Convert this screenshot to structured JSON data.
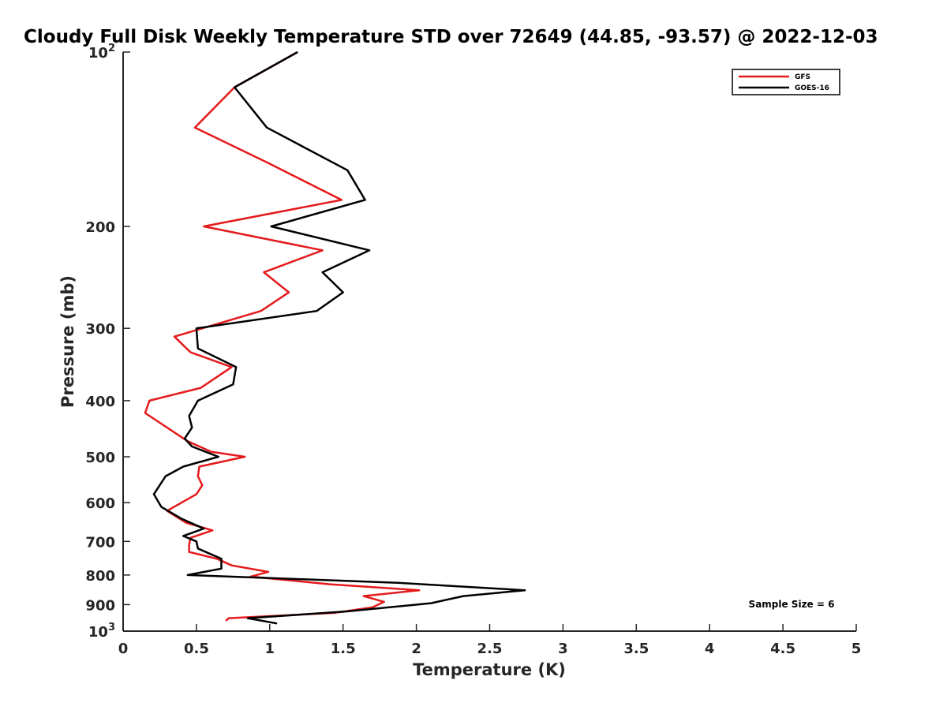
{
  "chart_data": {
    "type": "line",
    "title": "Cloudy Full Disk Weekly Temperature STD over 72649 (44.85, -93.57) @ 2022-12-03",
    "xlabel": "Temperature (K)",
    "ylabel": "Pressure (mb)",
    "xlim": [
      0,
      5
    ],
    "ylim": [
      100,
      1000
    ],
    "y_scale": "log",
    "y_reversed": true,
    "grid": false,
    "legend_position": "top-right",
    "x_ticks": [
      "0",
      "0.5",
      "1",
      "1.5",
      "2",
      "2.5",
      "3",
      "3.5",
      "4",
      "4.5",
      "5"
    ],
    "x_tick_values": [
      0,
      0.5,
      1,
      1.5,
      2,
      2.5,
      3,
      3.5,
      4,
      4.5,
      5
    ],
    "y_ticks": [
      {
        "value": 100,
        "base": "10",
        "exp": "2"
      },
      {
        "value": 200,
        "label": "200"
      },
      {
        "value": 300,
        "label": "300"
      },
      {
        "value": 400,
        "label": "400"
      },
      {
        "value": 500,
        "label": "500"
      },
      {
        "value": 600,
        "label": "600"
      },
      {
        "value": 700,
        "label": "700"
      },
      {
        "value": 800,
        "label": "800"
      },
      {
        "value": 900,
        "label": "900"
      },
      {
        "value": 1000,
        "base": "10",
        "exp": "3"
      }
    ],
    "annotation": "Sample Size = 6",
    "series": [
      {
        "name": "GFS",
        "color": "#e41a1c",
        "points": [
          [
            1.19,
            100
          ],
          [
            0.76,
            115
          ],
          [
            0.49,
            135
          ],
          [
            0.98,
            155
          ],
          [
            1.49,
            180
          ],
          [
            0.55,
            200
          ],
          [
            1.36,
            220
          ],
          [
            0.96,
            240
          ],
          [
            1.13,
            260
          ],
          [
            0.94,
            280
          ],
          [
            0.35,
            310
          ],
          [
            0.46,
            330
          ],
          [
            0.74,
            350
          ],
          [
            0.53,
            380
          ],
          [
            0.18,
            400
          ],
          [
            0.15,
            420
          ],
          [
            0.44,
            470
          ],
          [
            0.6,
            490
          ],
          [
            0.83,
            500
          ],
          [
            0.52,
            520
          ],
          [
            0.51,
            540
          ],
          [
            0.54,
            560
          ],
          [
            0.5,
            580
          ],
          [
            0.3,
            620
          ],
          [
            0.43,
            650
          ],
          [
            0.61,
            670
          ],
          [
            0.46,
            690
          ],
          [
            0.45,
            710
          ],
          [
            0.45,
            730
          ],
          [
            0.64,
            750
          ],
          [
            0.74,
            770
          ],
          [
            0.99,
            790
          ],
          [
            0.87,
            805
          ],
          [
            1.41,
            830
          ],
          [
            2.02,
            850
          ],
          [
            1.64,
            870
          ],
          [
            1.78,
            890
          ],
          [
            1.7,
            910
          ],
          [
            1.44,
            930
          ],
          [
            0.72,
            950
          ],
          [
            0.7,
            960
          ]
        ]
      },
      {
        "name": "GOES-16",
        "color": "#000000",
        "points": [
          [
            1.19,
            100
          ],
          [
            0.76,
            115
          ],
          [
            0.98,
            135
          ],
          [
            1.53,
            160
          ],
          [
            1.65,
            180
          ],
          [
            1.01,
            200
          ],
          [
            1.68,
            220
          ],
          [
            1.36,
            240
          ],
          [
            1.5,
            260
          ],
          [
            1.32,
            280
          ],
          [
            0.5,
            300
          ],
          [
            0.51,
            325
          ],
          [
            0.77,
            350
          ],
          [
            0.75,
            375
          ],
          [
            0.51,
            400
          ],
          [
            0.45,
            425
          ],
          [
            0.47,
            445
          ],
          [
            0.42,
            465
          ],
          [
            0.47,
            480
          ],
          [
            0.65,
            500
          ],
          [
            0.41,
            520
          ],
          [
            0.29,
            540
          ],
          [
            0.21,
            580
          ],
          [
            0.26,
            610
          ],
          [
            0.4,
            640
          ],
          [
            0.55,
            665
          ],
          [
            0.41,
            685
          ],
          [
            0.5,
            700
          ],
          [
            0.51,
            720
          ],
          [
            0.67,
            750
          ],
          [
            0.67,
            780
          ],
          [
            0.44,
            800
          ],
          [
            1.87,
            825
          ],
          [
            2.74,
            850
          ],
          [
            2.32,
            870
          ],
          [
            2.1,
            895
          ],
          [
            1.52,
            925
          ],
          [
            0.85,
            950
          ],
          [
            1.05,
            970
          ]
        ]
      }
    ]
  }
}
